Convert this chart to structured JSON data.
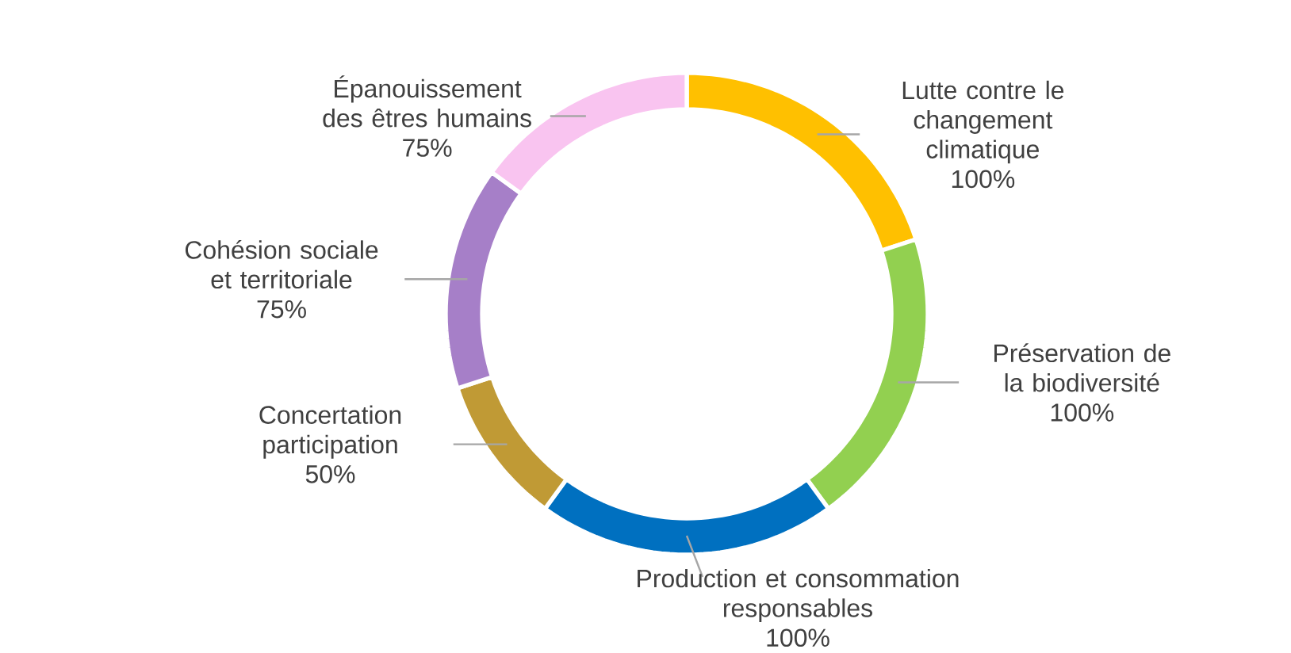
{
  "chart_data": {
    "type": "donut",
    "categories": [
      "Lutte contre le changement climatique",
      "Préservation de la biodiversité",
      "Production et consommation responsables",
      "Concertation participation",
      "Cohésion sociale et territoriale",
      "Épanouissement des êtres humains"
    ],
    "values": [
      100,
      100,
      100,
      50,
      75,
      75
    ],
    "value_labels": [
      "100%",
      "100%",
      "100%",
      "50%",
      "75%",
      "75%"
    ],
    "colors": [
      "#ffc000",
      "#92d050",
      "#0070c0",
      "#c09a35",
      "#a67fc8",
      "#f9c4f0"
    ]
  }
}
